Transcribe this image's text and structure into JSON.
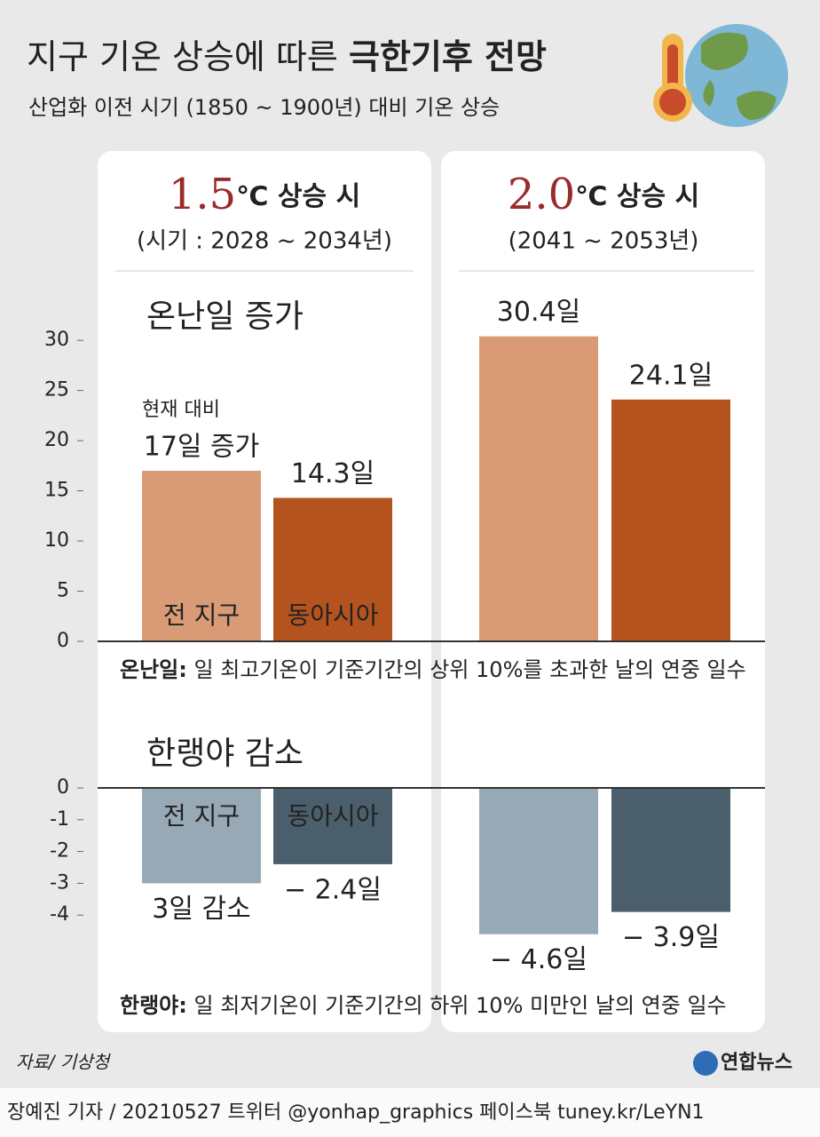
{
  "title": {
    "plain": "지구 기온 상승에 따른",
    "bold": "극한기후 전망"
  },
  "subtitle": "산업화 이전 시기 (1850 ~ 1900년) 대비 기온 상승",
  "scenarios": [
    {
      "level": "1.5",
      "label": "℃ 상승 시",
      "period": "(시기 : 2028 ~ 2034년)"
    },
    {
      "level": "2.0",
      "label": "℃ 상승 시",
      "period": "(2041 ~ 2053년)"
    }
  ],
  "chart_data": [
    {
      "type": "bar",
      "title": "온난일 증가",
      "annotation": "현재 대비",
      "categories": [
        "전 지구",
        "동아시아"
      ],
      "colors": [
        "#d99b76",
        "#b5531f"
      ],
      "series": [
        {
          "values": [
            17,
            14.3
          ],
          "value_labels": [
            "17일 증가",
            "14.3일"
          ]
        },
        {
          "values": [
            30.4,
            24.1
          ],
          "value_labels": [
            "30.4일",
            "24.1일"
          ]
        }
      ],
      "ylim": [
        0,
        34
      ],
      "yticks": [
        0,
        5,
        10,
        15,
        20,
        25,
        30
      ],
      "note_term": "온난일:",
      "note": "일 최고기온이 기준기간의 상위 10%를 초과한 날의 연중 일수"
    },
    {
      "type": "bar",
      "title": "한랭야 감소",
      "categories": [
        "전 지구",
        "동아시아"
      ],
      "colors": [
        "#97a9b4",
        "#4a5f6b"
      ],
      "series": [
        {
          "values": [
            -3,
            -2.4
          ],
          "value_labels": [
            "3일 감소",
            "− 2.4일"
          ]
        },
        {
          "values": [
            -4.6,
            -3.9
          ],
          "value_labels": [
            "− 4.6일",
            "− 3.9일"
          ]
        }
      ],
      "ylim": [
        -5,
        0
      ],
      "yticks": [
        0,
        -1,
        -2,
        -3,
        -4
      ],
      "note_term": "한랭야:",
      "note": "일 최저기온이 기준기간의 하위 10% 미만인 날의 연중 일수"
    }
  ],
  "source": "자료/ 기상청",
  "logo": "연합뉴스",
  "credit": "장예진 기자 / 20210527 트위터 @yonhap_graphics  페이스북 tuney.kr/LeYN1"
}
